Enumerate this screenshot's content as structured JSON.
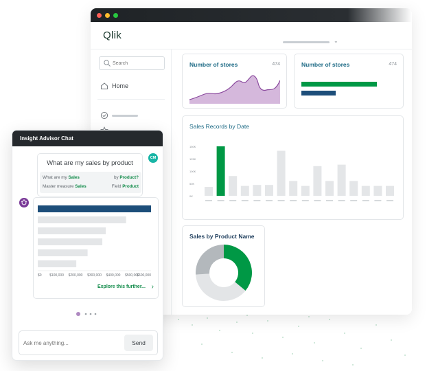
{
  "app": {
    "logo": "Qlik"
  },
  "sidebar": {
    "search_placeholder": "Search",
    "home_label": "Home"
  },
  "kpi_cards": [
    {
      "title": "Number of stores",
      "value": "474"
    },
    {
      "title": "Number of stores",
      "value": "474"
    }
  ],
  "sales_records": {
    "title": "Sales Records by Date",
    "ticks": [
      "150K",
      "125K",
      "100K",
      "50K",
      "0K"
    ],
    "bars": [
      0.18,
      1.0,
      0.4,
      0.2,
      0.22,
      0.22,
      0.91,
      0.3,
      0.2,
      0.6,
      0.3,
      0.63,
      0.3,
      0.2,
      0.2,
      0.2
    ],
    "highlight_index": 1
  },
  "product": {
    "title": "Sales by Product Name",
    "segments": [
      0.36,
      0.38,
      0.26
    ]
  },
  "chat": {
    "header": "Insight Advisor Chat",
    "avatar_initials": "CM",
    "question": "What are my sales by product",
    "row1_prefix": "What are my",
    "row1_term": "Sales",
    "row1_mid": "by",
    "row1_term2": "Product?",
    "row2_prefix": "Master measure",
    "row2_term": "Sales",
    "row2_mid": "Field",
    "row2_term2": "Product",
    "result_axis": [
      "$0",
      "$100,000",
      "$200,000",
      "$300,000",
      "$400,000",
      "$500,000",
      "$600,000"
    ],
    "result_bars": [
      1.0,
      0.78,
      0.6,
      0.57,
      0.44,
      0.34
    ],
    "explore_label": "Explore this further...",
    "input_placeholder": "Ask me anything...",
    "send_label": "Send"
  },
  "colors": {
    "accent_green": "#009845",
    "navy": "#1d4e7a",
    "teal_title": "#1d6a85",
    "purple": "#7a3a98",
    "purple_fill": "#c8a5cf"
  }
}
